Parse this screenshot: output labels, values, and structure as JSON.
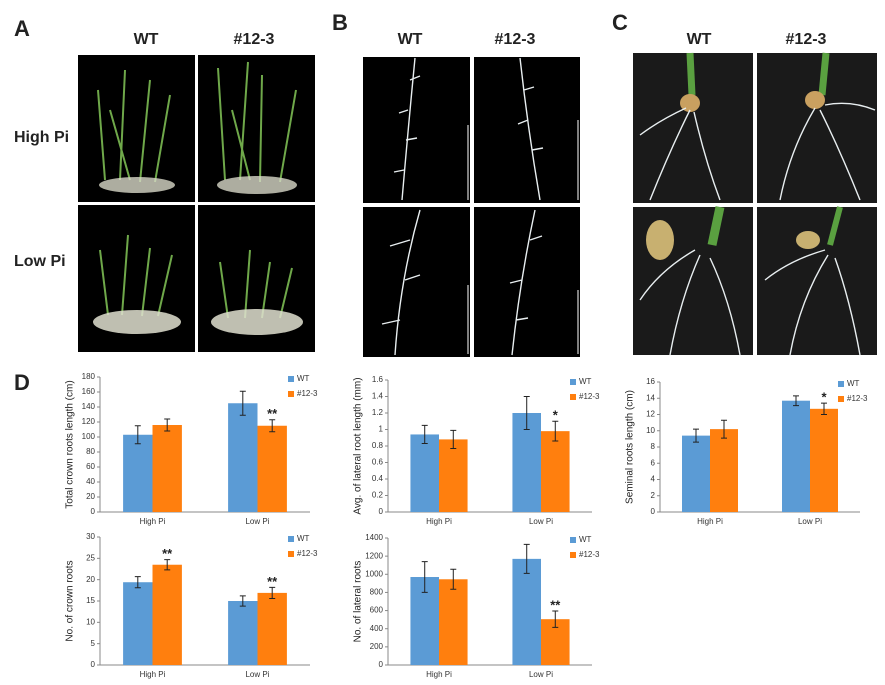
{
  "panels": [
    {
      "label": "A",
      "columns": [
        "WT",
        "#12-3"
      ],
      "rows": [
        "High Pi",
        "Low Pi"
      ]
    },
    {
      "label": "B",
      "columns": [
        "WT",
        "#12-3"
      ]
    },
    {
      "label": "C",
      "columns": [
        "WT",
        "#12-3"
      ]
    },
    {
      "label": "D"
    }
  ],
  "chart_data": [
    {
      "type": "bar",
      "y_label": "Total crown roots length (cm)",
      "categories": [
        "High Pi",
        "Low Pi"
      ],
      "series": [
        {
          "name": "WT",
          "color": "#5b9bd5",
          "values": [
            103,
            145
          ],
          "errors": [
            12,
            16
          ],
          "significance": [
            null,
            null
          ]
        },
        {
          "name": "#12-3",
          "color": "#ff7f0e",
          "values": [
            116,
            115
          ],
          "errors": [
            8,
            8
          ],
          "significance": [
            null,
            "**"
          ]
        }
      ],
      "ylim": [
        0,
        180
      ],
      "yticks": [
        0,
        20,
        40,
        60,
        80,
        100,
        120,
        140,
        160,
        180
      ]
    },
    {
      "type": "bar",
      "y_label": "Avg. of lateral root length (mm)",
      "categories": [
        "High Pi",
        "Low Pi"
      ],
      "series": [
        {
          "name": "WT",
          "color": "#5b9bd5",
          "values": [
            0.94,
            1.2
          ],
          "errors": [
            0.11,
            0.2
          ],
          "significance": [
            null,
            null
          ]
        },
        {
          "name": "#12-3",
          "color": "#ff7f0e",
          "values": [
            0.88,
            0.98
          ],
          "errors": [
            0.11,
            0.12
          ],
          "significance": [
            null,
            "*"
          ]
        }
      ],
      "ylim": [
        0,
        1.6
      ],
      "yticks": [
        0,
        0.2,
        0.4,
        0.6,
        0.8,
        1,
        1.2,
        1.4,
        1.6
      ]
    },
    {
      "type": "bar",
      "y_label": "Seminal roots length (cm)",
      "categories": [
        "High Pi",
        "Low Pi"
      ],
      "series": [
        {
          "name": "WT",
          "color": "#5b9bd5",
          "values": [
            9.4,
            13.7
          ],
          "errors": [
            0.8,
            0.6
          ],
          "significance": [
            null,
            null
          ]
        },
        {
          "name": "#12-3",
          "color": "#ff7f0e",
          "values": [
            10.2,
            12.7
          ],
          "errors": [
            1.1,
            0.7
          ],
          "significance": [
            null,
            "*"
          ]
        }
      ],
      "ylim": [
        0,
        16
      ],
      "yticks": [
        0,
        2,
        4,
        6,
        8,
        10,
        12,
        14,
        16
      ]
    },
    {
      "type": "bar",
      "y_label": "No. of crown roots",
      "categories": [
        "High Pi",
        "Low Pi"
      ],
      "series": [
        {
          "name": "WT",
          "color": "#5b9bd5",
          "values": [
            19.4,
            15
          ],
          "errors": [
            1.3,
            1.2
          ],
          "significance": [
            null,
            null
          ]
        },
        {
          "name": "#12-3",
          "color": "#ff7f0e",
          "values": [
            23.5,
            16.9
          ],
          "errors": [
            1.2,
            1.3
          ],
          "significance": [
            "**",
            "**"
          ]
        }
      ],
      "ylim": [
        0,
        30
      ],
      "yticks": [
        0,
        5,
        10,
        15,
        20,
        25,
        30
      ]
    },
    {
      "type": "bar",
      "y_label": "No. of lateral roots",
      "categories": [
        "High Pi",
        "Low Pi"
      ],
      "series": [
        {
          "name": "WT",
          "color": "#5b9bd5",
          "values": [
            970,
            1170
          ],
          "errors": [
            170,
            160
          ],
          "significance": [
            null,
            null
          ]
        },
        {
          "name": "#12-3",
          "color": "#ff7f0e",
          "values": [
            945,
            505
          ],
          "errors": [
            110,
            90
          ],
          "significance": [
            null,
            "**"
          ]
        }
      ],
      "ylim": [
        0,
        1400
      ],
      "yticks": [
        0,
        200,
        400,
        600,
        800,
        1000,
        1200,
        1400
      ]
    }
  ]
}
